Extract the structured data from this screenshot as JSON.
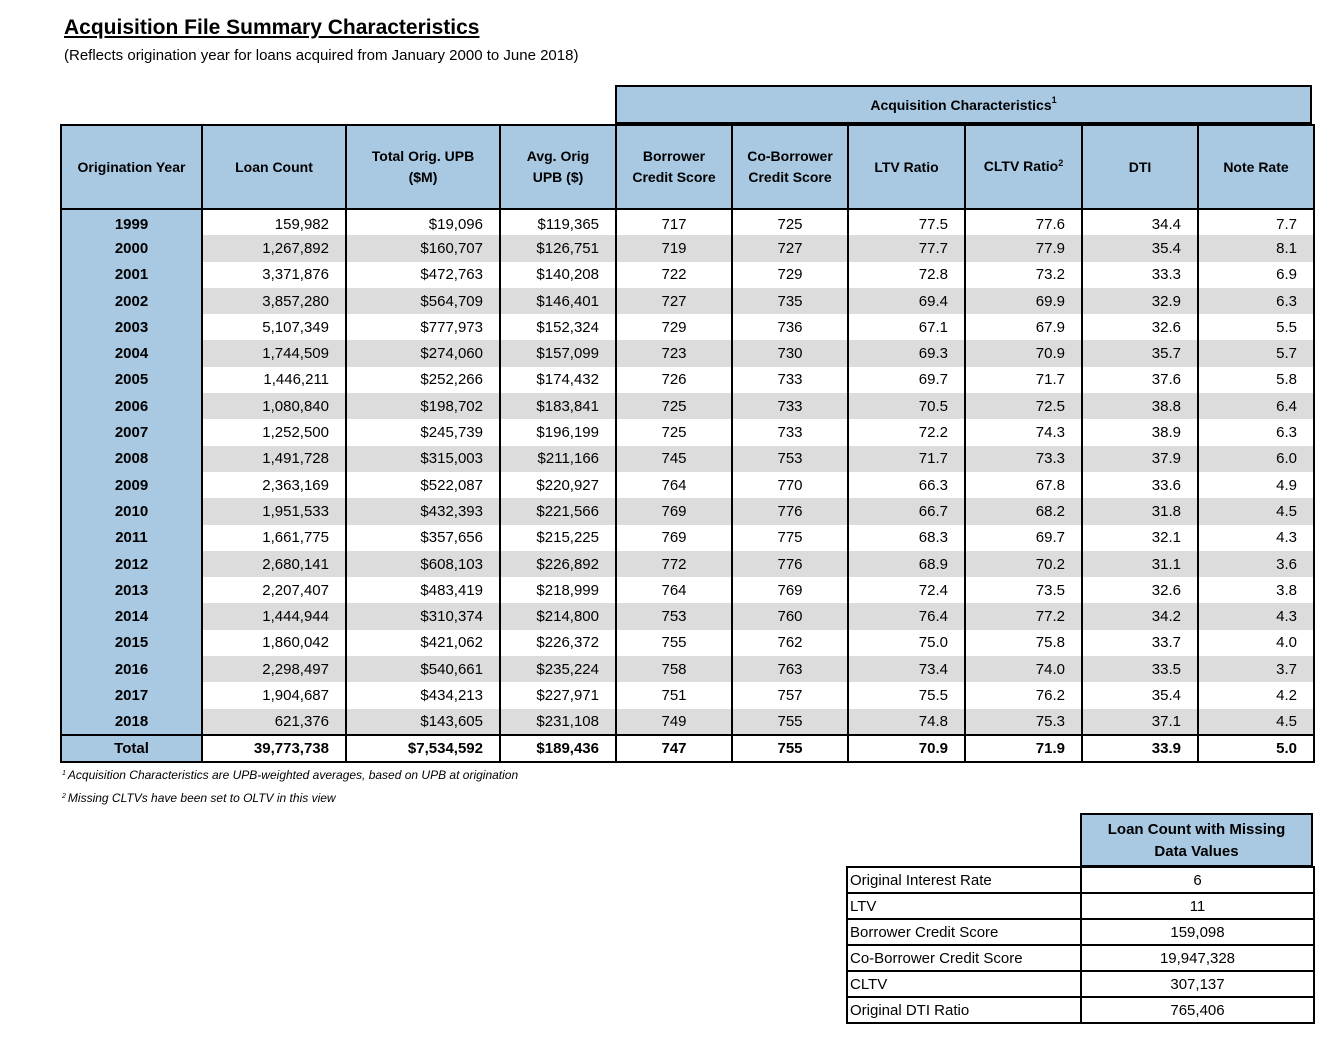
{
  "title": "Acquisition File Summary Characteristics",
  "subtitle": "(Reflects origination year for loans acquired from January 2000 to June 2018)",
  "group_header": "Acquisition Characteristics",
  "group_header_footnote": "1",
  "columns": {
    "year": "Origination Year",
    "count": "Loan Count",
    "upb_line1": "Total Orig. UPB",
    "upb_line2": "($M)",
    "avg_line1": "Avg. Orig",
    "avg_line2": "UPB ($)",
    "bcs_line1": "Borrower",
    "bcs_line2": "Credit Score",
    "cbcs_line1": "Co-Borrower",
    "cbcs_line2": "Credit Score",
    "ltv": "LTV Ratio",
    "cltv": "CLTV Ratio",
    "cltv_footnote": "2",
    "dti": "DTI",
    "rate": "Note Rate"
  },
  "rows": [
    {
      "year": "1999",
      "count": "159,982",
      "upb": "$19,096",
      "avg": "$119,365",
      "bcs": "717",
      "cbcs": "725",
      "ltv": "77.5",
      "cltv": "77.6",
      "dti": "34.4",
      "rate": "7.7"
    },
    {
      "year": "2000",
      "count": "1,267,892",
      "upb": "$160,707",
      "avg": "$126,751",
      "bcs": "719",
      "cbcs": "727",
      "ltv": "77.7",
      "cltv": "77.9",
      "dti": "35.4",
      "rate": "8.1"
    },
    {
      "year": "2001",
      "count": "3,371,876",
      "upb": "$472,763",
      "avg": "$140,208",
      "bcs": "722",
      "cbcs": "729",
      "ltv": "72.8",
      "cltv": "73.2",
      "dti": "33.3",
      "rate": "6.9"
    },
    {
      "year": "2002",
      "count": "3,857,280",
      "upb": "$564,709",
      "avg": "$146,401",
      "bcs": "727",
      "cbcs": "735",
      "ltv": "69.4",
      "cltv": "69.9",
      "dti": "32.9",
      "rate": "6.3"
    },
    {
      "year": "2003",
      "count": "5,107,349",
      "upb": "$777,973",
      "avg": "$152,324",
      "bcs": "729",
      "cbcs": "736",
      "ltv": "67.1",
      "cltv": "67.9",
      "dti": "32.6",
      "rate": "5.5"
    },
    {
      "year": "2004",
      "count": "1,744,509",
      "upb": "$274,060",
      "avg": "$157,099",
      "bcs": "723",
      "cbcs": "730",
      "ltv": "69.3",
      "cltv": "70.9",
      "dti": "35.7",
      "rate": "5.7"
    },
    {
      "year": "2005",
      "count": "1,446,211",
      "upb": "$252,266",
      "avg": "$174,432",
      "bcs": "726",
      "cbcs": "733",
      "ltv": "69.7",
      "cltv": "71.7",
      "dti": "37.6",
      "rate": "5.8"
    },
    {
      "year": "2006",
      "count": "1,080,840",
      "upb": "$198,702",
      "avg": "$183,841",
      "bcs": "725",
      "cbcs": "733",
      "ltv": "70.5",
      "cltv": "72.5",
      "dti": "38.8",
      "rate": "6.4"
    },
    {
      "year": "2007",
      "count": "1,252,500",
      "upb": "$245,739",
      "avg": "$196,199",
      "bcs": "725",
      "cbcs": "733",
      "ltv": "72.2",
      "cltv": "74.3",
      "dti": "38.9",
      "rate": "6.3"
    },
    {
      "year": "2008",
      "count": "1,491,728",
      "upb": "$315,003",
      "avg": "$211,166",
      "bcs": "745",
      "cbcs": "753",
      "ltv": "71.7",
      "cltv": "73.3",
      "dti": "37.9",
      "rate": "6.0"
    },
    {
      "year": "2009",
      "count": "2,363,169",
      "upb": "$522,087",
      "avg": "$220,927",
      "bcs": "764",
      "cbcs": "770",
      "ltv": "66.3",
      "cltv": "67.8",
      "dti": "33.6",
      "rate": "4.9"
    },
    {
      "year": "2010",
      "count": "1,951,533",
      "upb": "$432,393",
      "avg": "$221,566",
      "bcs": "769",
      "cbcs": "776",
      "ltv": "66.7",
      "cltv": "68.2",
      "dti": "31.8",
      "rate": "4.5"
    },
    {
      "year": "2011",
      "count": "1,661,775",
      "upb": "$357,656",
      "avg": "$215,225",
      "bcs": "769",
      "cbcs": "775",
      "ltv": "68.3",
      "cltv": "69.7",
      "dti": "32.1",
      "rate": "4.3"
    },
    {
      "year": "2012",
      "count": "2,680,141",
      "upb": "$608,103",
      "avg": "$226,892",
      "bcs": "772",
      "cbcs": "776",
      "ltv": "68.9",
      "cltv": "70.2",
      "dti": "31.1",
      "rate": "3.6"
    },
    {
      "year": "2013",
      "count": "2,207,407",
      "upb": "$483,419",
      "avg": "$218,999",
      "bcs": "764",
      "cbcs": "769",
      "ltv": "72.4",
      "cltv": "73.5",
      "dti": "32.6",
      "rate": "3.8"
    },
    {
      "year": "2014",
      "count": "1,444,944",
      "upb": "$310,374",
      "avg": "$214,800",
      "bcs": "753",
      "cbcs": "760",
      "ltv": "76.4",
      "cltv": "77.2",
      "dti": "34.2",
      "rate": "4.3"
    },
    {
      "year": "2015",
      "count": "1,860,042",
      "upb": "$421,062",
      "avg": "$226,372",
      "bcs": "755",
      "cbcs": "762",
      "ltv": "75.0",
      "cltv": "75.8",
      "dti": "33.7",
      "rate": "4.0"
    },
    {
      "year": "2016",
      "count": "2,298,497",
      "upb": "$540,661",
      "avg": "$235,224",
      "bcs": "758",
      "cbcs": "763",
      "ltv": "73.4",
      "cltv": "74.0",
      "dti": "33.5",
      "rate": "3.7"
    },
    {
      "year": "2017",
      "count": "1,904,687",
      "upb": "$434,213",
      "avg": "$227,971",
      "bcs": "751",
      "cbcs": "757",
      "ltv": "75.5",
      "cltv": "76.2",
      "dti": "35.4",
      "rate": "4.2"
    },
    {
      "year": "2018",
      "count": "621,376",
      "upb": "$143,605",
      "avg": "$231,108",
      "bcs": "749",
      "cbcs": "755",
      "ltv": "74.8",
      "cltv": "75.3",
      "dti": "37.1",
      "rate": "4.5"
    }
  ],
  "total": {
    "year": "Total",
    "count": "39,773,738",
    "upb": "$7,534,592",
    "avg": "$189,436",
    "bcs": "747",
    "cbcs": "755",
    "ltv": "70.9",
    "cltv": "71.9",
    "dti": "33.9",
    "rate": "5.0"
  },
  "footnotes": [
    {
      "mark": "1",
      "text": "Acquisition Characteristics are UPB-weighted averages, based on UPB at origination"
    },
    {
      "mark": "2",
      "text": "Missing CLTVs have been set to OLTV in this view"
    }
  ],
  "missing": {
    "header_line1": "Loan Count with Missing",
    "header_line2": "Data Values",
    "rows": [
      {
        "label": "Original Interest Rate",
        "value": "6"
      },
      {
        "label": "LTV",
        "value": "11"
      },
      {
        "label": "Borrower Credit Score",
        "value": "159,098"
      },
      {
        "label": "Co-Borrower Credit Score",
        "value": "19,947,328"
      },
      {
        "label": "CLTV",
        "value": "307,137"
      },
      {
        "label": "Original DTI Ratio",
        "value": "765,406"
      }
    ]
  }
}
